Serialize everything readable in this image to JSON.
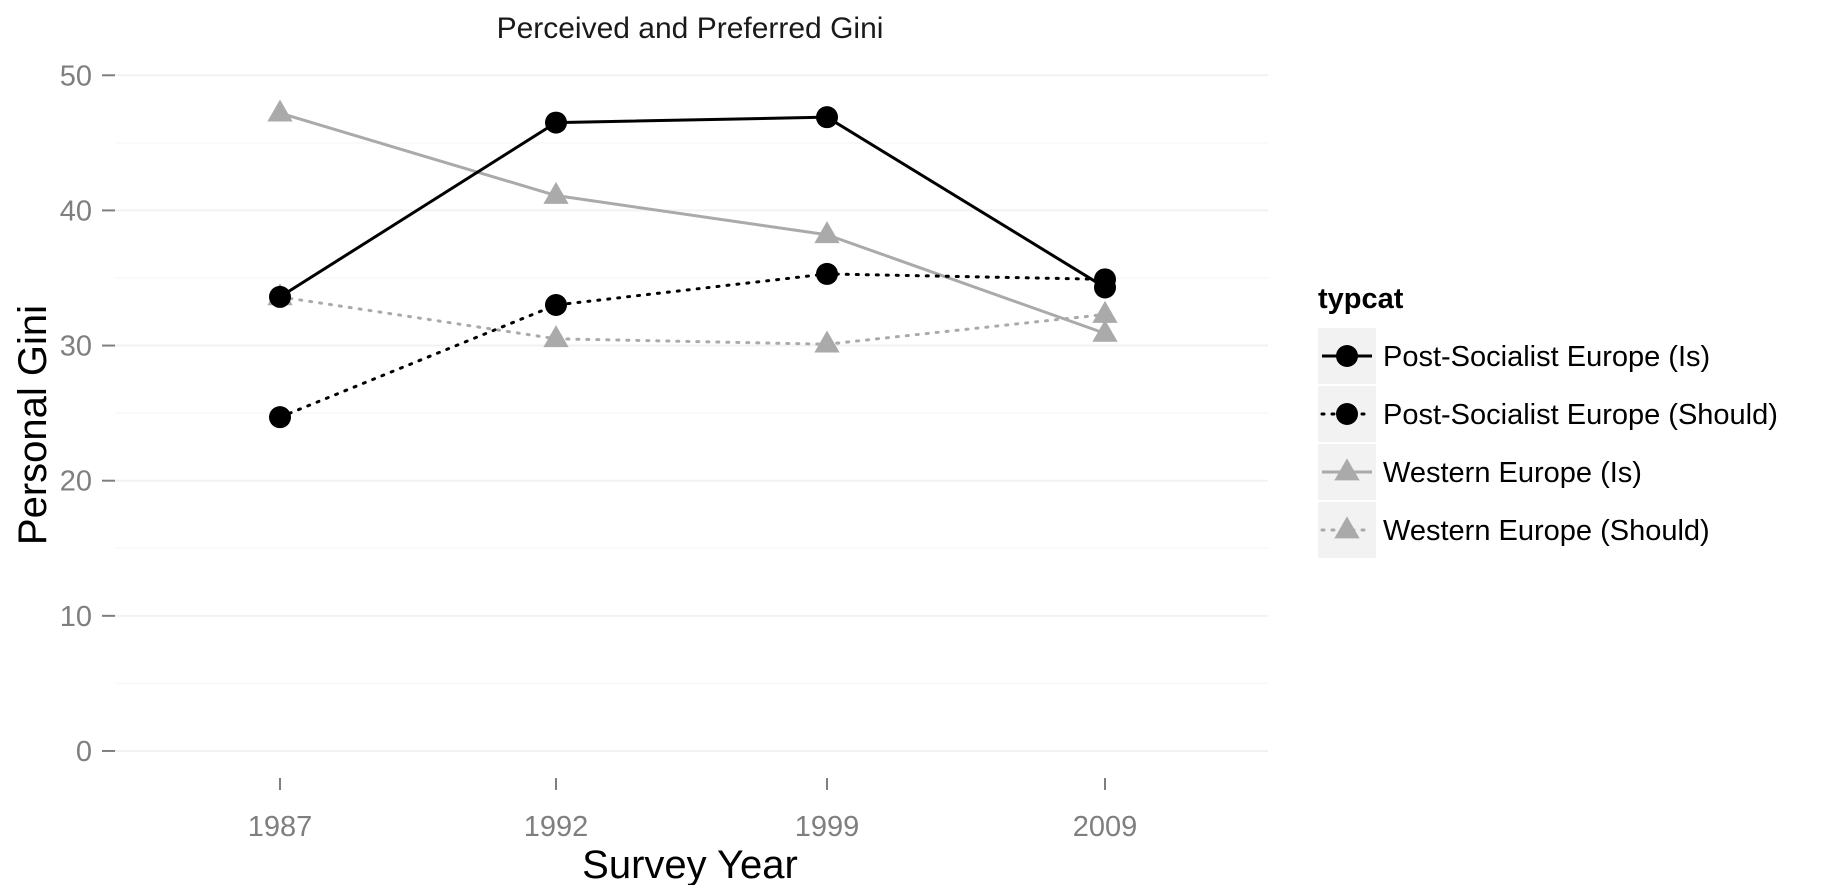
{
  "chart_data": {
    "type": "line",
    "title": "Perceived and Preferred Gini",
    "xlabel": "Survey Year",
    "ylabel": "Personal Gini",
    "categories": [
      "1987",
      "1992",
      "1999",
      "2009"
    ],
    "yticks": [
      0,
      10,
      20,
      30,
      40,
      50
    ],
    "ylim": [
      -2,
      51.5
    ],
    "grid": true,
    "legend": {
      "title": "typcat",
      "placement": "right"
    },
    "series": [
      {
        "name": "Post-Socialist Europe (Is)",
        "values": [
          33.6,
          46.5,
          46.9,
          34.3
        ],
        "color": "#000000",
        "line": "solid",
        "marker": "circle"
      },
      {
        "name": "Post-Socialist Europe (Should)",
        "values": [
          24.7,
          33.0,
          35.3,
          34.9
        ],
        "color": "#000000",
        "line": "dotted",
        "marker": "circle"
      },
      {
        "name": "Western Europe (Is)",
        "values": [
          47.2,
          41.1,
          38.2,
          30.9
        ],
        "color": "#aaaaaa",
        "line": "solid",
        "marker": "triangle"
      },
      {
        "name": "Western Europe (Should)",
        "values": [
          33.6,
          30.5,
          30.1,
          32.3
        ],
        "color": "#aaaaaa",
        "line": "dotted",
        "marker": "triangle"
      }
    ]
  }
}
